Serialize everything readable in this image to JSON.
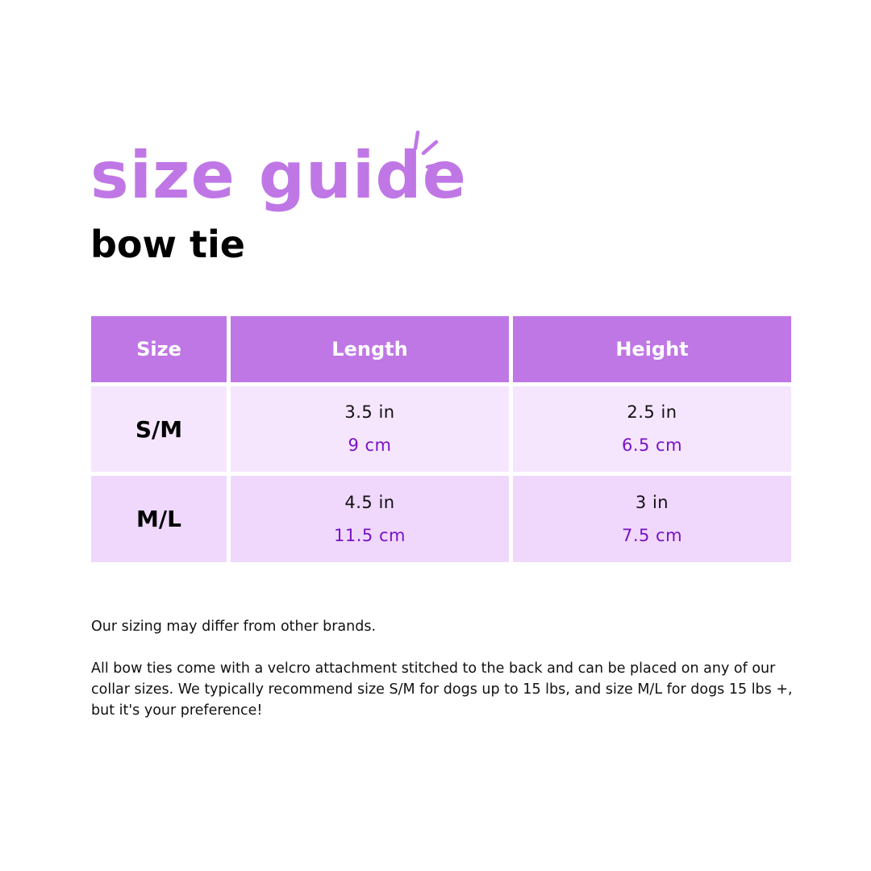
{
  "title": "size guide",
  "subtitle": "bow tie",
  "colors": {
    "accent": "#c077e6",
    "row_light": "#f5e6fd",
    "row_mid": "#efd8fc",
    "metric_text": "#7a12c4"
  },
  "table": {
    "headers": [
      "Size",
      "Length",
      "Height"
    ],
    "rows": [
      {
        "size": "S/M",
        "length_in": "3.5 in",
        "length_cm": "9 cm",
        "height_in": "2.5 in",
        "height_cm": "6.5 cm"
      },
      {
        "size": "M/L",
        "length_in": "4.5 in",
        "length_cm": "11.5 cm",
        "height_in": "3 in",
        "height_cm": "7.5 cm"
      }
    ]
  },
  "notes": [
    "Our sizing may differ from other brands.",
    "All bow ties come with a velcro attachment stitched to the back and can be placed on any of our collar sizes.  We typically recommend size S/M for dogs up to 15 lbs, and size M/L for dogs 15 lbs +, but it's your preference!"
  ]
}
